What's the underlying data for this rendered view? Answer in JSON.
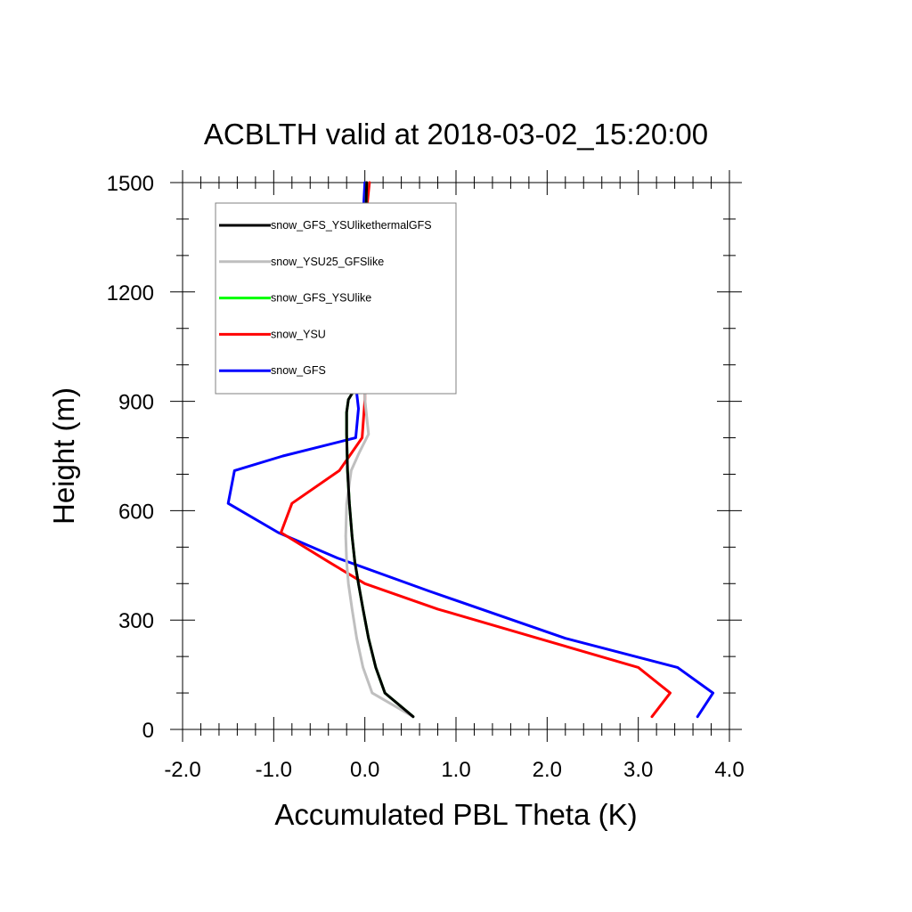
{
  "chart_data": {
    "type": "line",
    "title": "ACBLTH valid at 2018-03-02_15:20:00",
    "xlabel": "Accumulated PBL Theta (K)",
    "ylabel": "Height (m)",
    "xlim": [
      -2.0,
      4.0
    ],
    "ylim": [
      0,
      1500
    ],
    "xticks": [
      "-2.0",
      "-1.0",
      "0.0",
      "1.0",
      "2.0",
      "3.0",
      "4.0"
    ],
    "yticks": [
      "0",
      "300",
      "600",
      "900",
      "1200",
      "1500"
    ],
    "legend_position": "top-left",
    "grid": false,
    "series": [
      {
        "name": "snow_GFS_YSUlikethermalGFS",
        "color": "#000000",
        "x": [
          0.53,
          0.22,
          0.12,
          0.04,
          -0.02,
          -0.07,
          -0.11,
          -0.14,
          -0.17,
          -0.19,
          -0.2,
          -0.2,
          -0.18,
          0.0,
          0.0,
          0.0,
          0.01,
          0.02
        ],
        "y": [
          35,
          100,
          170,
          250,
          330,
          400,
          460,
          530,
          620,
          710,
          810,
          870,
          905,
          980,
          1100,
          1250,
          1400,
          1500
        ]
      },
      {
        "name": "snow_YSU25_GFSlike",
        "color": "#bfbfbf",
        "x": [
          0.53,
          0.08,
          -0.02,
          -0.09,
          -0.14,
          -0.18,
          -0.2,
          -0.21,
          -0.2,
          -0.15,
          -0.06,
          0.04,
          0.0,
          0.0,
          0.0,
          0.0,
          0.01,
          0.02
        ],
        "y": [
          35,
          100,
          170,
          250,
          330,
          400,
          460,
          530,
          620,
          710,
          760,
          810,
          905,
          980,
          1100,
          1250,
          1400,
          1500
        ]
      },
      {
        "name": "snow_GFS_YSUlike",
        "color": "#00ff00",
        "x": [
          0.53,
          0.22,
          0.12,
          0.04,
          -0.02,
          -0.07,
          -0.11,
          -0.14,
          -0.17,
          -0.19,
          -0.2,
          -0.2,
          -0.18,
          0.0,
          0.0,
          0.0,
          0.01,
          0.02
        ],
        "y": [
          35,
          100,
          170,
          250,
          330,
          400,
          460,
          530,
          620,
          710,
          810,
          870,
          905,
          980,
          1100,
          1250,
          1400,
          1500
        ]
      },
      {
        "name": "snow_YSU",
        "color": "#ff0000",
        "x": [
          3.15,
          3.35,
          3.0,
          1.9,
          0.8,
          0.0,
          -0.4,
          -0.92,
          -0.8,
          -0.28,
          -0.03,
          0.0,
          0.0,
          0.0,
          0.01,
          0.02,
          0.03,
          0.05
        ],
        "y": [
          35,
          100,
          170,
          250,
          330,
          400,
          460,
          540,
          620,
          710,
          800,
          905,
          980,
          1100,
          1250,
          1400,
          1450,
          1500
        ]
      },
      {
        "name": "snow_GFS",
        "color": "#0000ff",
        "x": [
          3.65,
          3.82,
          3.43,
          2.2,
          0.7,
          -0.3,
          -0.95,
          -1.5,
          -1.43,
          -0.9,
          -0.1,
          -0.07,
          -0.12,
          -0.05,
          -0.02,
          -0.02,
          -0.01,
          0.0
        ],
        "y": [
          35,
          100,
          170,
          250,
          380,
          470,
          540,
          620,
          710,
          750,
          800,
          880,
          990,
          1100,
          1250,
          1400,
          1450,
          1500
        ]
      }
    ]
  }
}
